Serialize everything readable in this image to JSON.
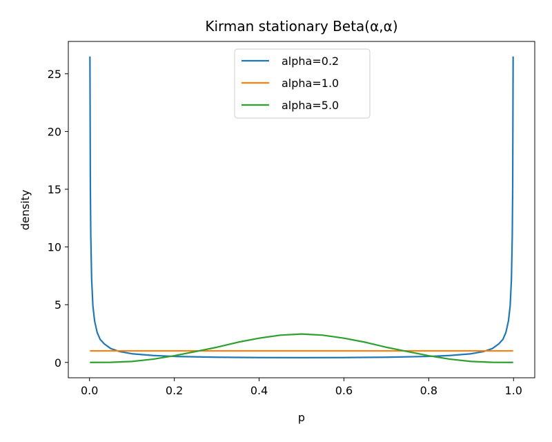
{
  "chart_data": {
    "type": "line",
    "title": "Kirman stationary Beta(α,α)",
    "xlabel": "p",
    "ylabel": "density",
    "xlim": [
      -0.05,
      1.05
    ],
    "ylim": [
      -1.33,
      27.8
    ],
    "xticks": [
      0.0,
      0.2,
      0.4,
      0.6,
      0.8,
      1.0
    ],
    "xtick_labels": [
      "0.0",
      "0.2",
      "0.4",
      "0.6",
      "0.8",
      "1.0"
    ],
    "yticks": [
      0,
      5,
      10,
      15,
      20,
      25
    ],
    "ytick_labels": [
      "0",
      "5",
      "10",
      "15",
      "20",
      "25"
    ],
    "grid": false,
    "legend_position": "upper-center",
    "series": [
      {
        "name": "alpha=0.2",
        "color": "#1f77b4",
        "x": [
          0.001,
          0.002,
          0.003,
          0.005,
          0.008,
          0.012,
          0.018,
          0.025,
          0.035,
          0.05,
          0.07,
          0.1,
          0.15,
          0.2,
          0.3,
          0.4,
          0.5,
          0.6,
          0.7,
          0.8,
          0.85,
          0.9,
          0.93,
          0.95,
          0.965,
          0.975,
          0.982,
          0.988,
          0.992,
          0.995,
          0.997,
          0.998,
          0.999
        ],
        "y": [
          26.5,
          15.2,
          11.0,
          7.2,
          4.9,
          3.6,
          2.6,
          2.0,
          1.6,
          1.2,
          0.95,
          0.75,
          0.6,
          0.52,
          0.45,
          0.42,
          0.41,
          0.42,
          0.45,
          0.52,
          0.6,
          0.75,
          0.95,
          1.2,
          1.6,
          2.0,
          2.6,
          3.6,
          4.9,
          7.2,
          11.0,
          15.2,
          26.5
        ]
      },
      {
        "name": "alpha=1.0",
        "color": "#ff7f0e",
        "x": [
          0.001,
          0.999
        ],
        "y": [
          1.0,
          1.0
        ]
      },
      {
        "name": "alpha=5.0",
        "color": "#2ca02c",
        "x": [
          0.001,
          0.05,
          0.1,
          0.15,
          0.2,
          0.25,
          0.3,
          0.35,
          0.4,
          0.45,
          0.5,
          0.55,
          0.6,
          0.65,
          0.7,
          0.75,
          0.8,
          0.85,
          0.9,
          0.95,
          0.999
        ],
        "y": [
          0.0,
          0.0075,
          0.083,
          0.28,
          0.58,
          0.94,
          1.31,
          1.75,
          2.1,
          2.36,
          2.46,
          2.36,
          2.1,
          1.75,
          1.31,
          0.94,
          0.58,
          0.28,
          0.083,
          0.0075,
          0.0
        ]
      }
    ]
  }
}
